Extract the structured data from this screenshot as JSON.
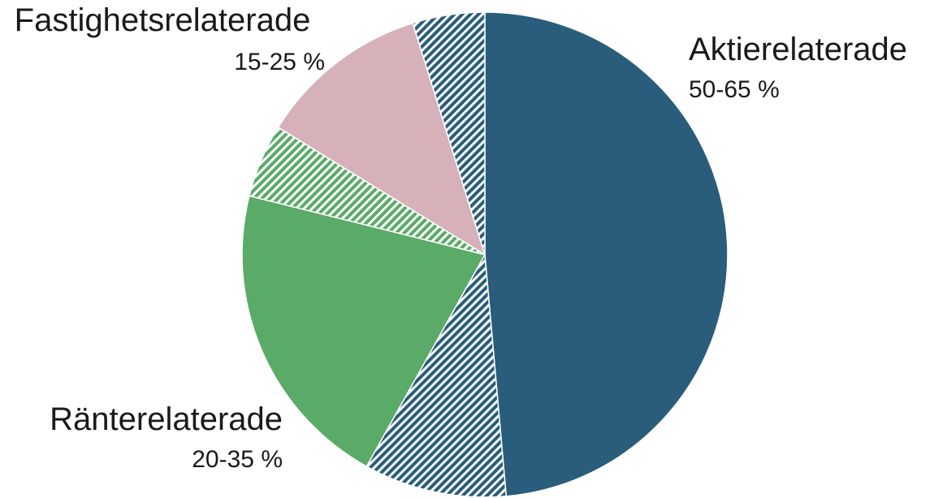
{
  "chart_data": {
    "type": "pie",
    "start_angle_deg": 0,
    "direction": "clockwise",
    "colors": {
      "aktier": "#295d7b",
      "ranter": "#5aab68",
      "fastighet": "#d6b1ba"
    },
    "categories": [
      {
        "key": "aktier",
        "label": "Aktierelaterade",
        "range": "50-65 %"
      },
      {
        "key": "ranter",
        "label": "Ränterelaterade",
        "range": "20-35 %"
      },
      {
        "key": "fastighet",
        "label": "Fastighetsrelaterade",
        "range": "15-25 %"
      }
    ],
    "slices": [
      {
        "category": "aktier",
        "style": "solid",
        "value": 48.6
      },
      {
        "category": "aktier",
        "style": "hatched",
        "value": 9.5
      },
      {
        "category": "ranter",
        "style": "solid",
        "value": 20.8
      },
      {
        "category": "ranter",
        "style": "hatched",
        "value": 4.9
      },
      {
        "category": "fastighet",
        "style": "solid",
        "value": 11.4
      },
      {
        "category": "aktier",
        "style": "hatched",
        "value": 4.8
      }
    ]
  }
}
